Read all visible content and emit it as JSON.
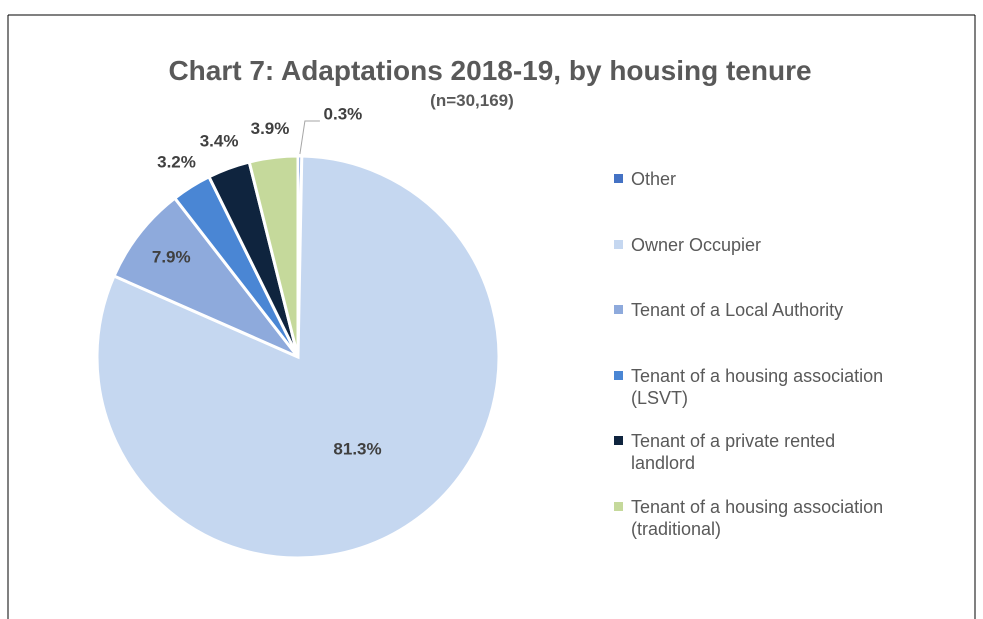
{
  "chart_data": {
    "type": "pie",
    "title": "Chart 7: Adaptations 2018-19, by housing tenure",
    "subtitle": "(n=30,169)",
    "categories": [
      "Other",
      "Owner Occupier",
      "Tenant of a Local Authority",
      "Tenant of a housing association (LSVT)",
      "Tenant of a private rented landlord",
      "Tenant of a housing association (traditional)"
    ],
    "values": [
      0.3,
      81.3,
      7.9,
      3.2,
      3.4,
      3.9
    ],
    "value_labels": [
      "0.3%",
      "81.3%",
      "7.9%",
      "3.2%",
      "3.4%",
      "3.9%"
    ],
    "colors": [
      "#4472c4",
      "#c5d7f0",
      "#8eaadc",
      "#4a86d4",
      "#0f243e",
      "#c5d99b"
    ],
    "legend": "right"
  }
}
